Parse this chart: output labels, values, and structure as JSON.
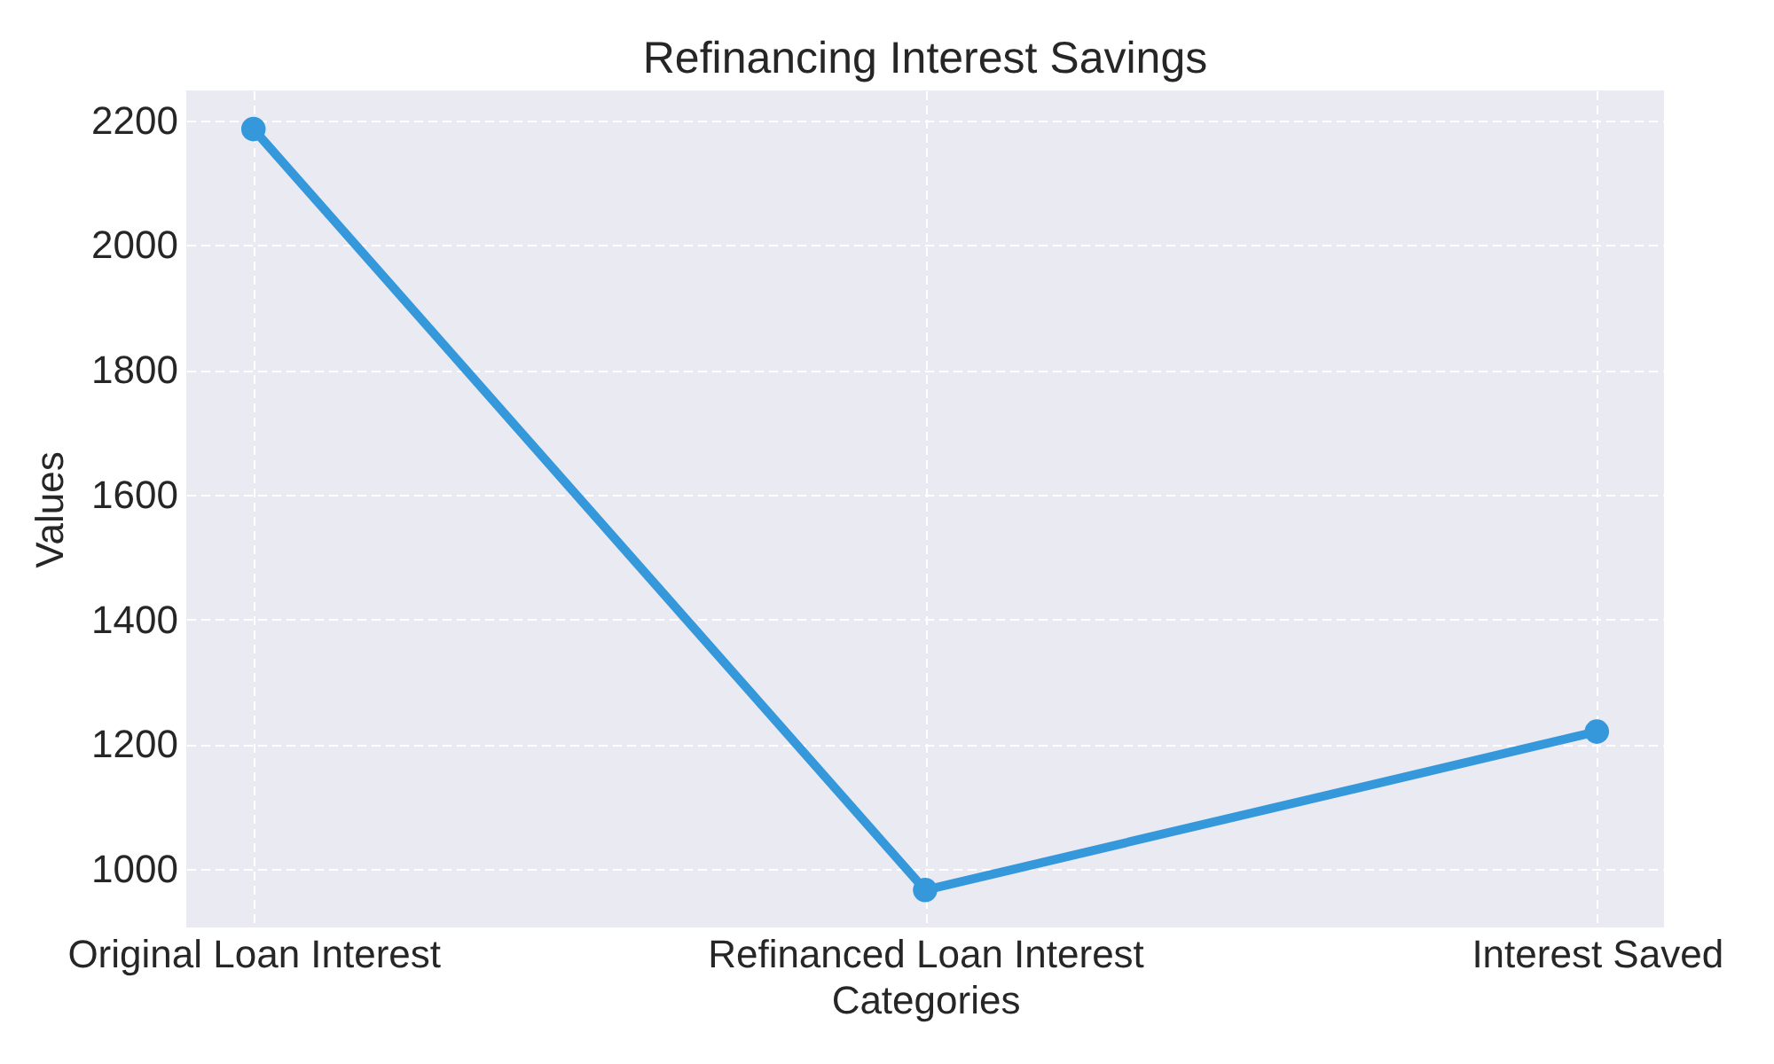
{
  "chart_data": {
    "type": "line",
    "title": "Refinancing Interest Savings",
    "xlabel": "Categories",
    "ylabel": "Values",
    "categories": [
      "Original Loan Interest",
      "Refinanced Loan Interest",
      "Interest Saved"
    ],
    "series": [
      {
        "color": "#3498db",
        "values": [
          2186,
          966,
          1220
        ]
      }
    ],
    "ylim": [
      906,
      2248
    ],
    "yticks": [
      1000,
      1200,
      1400,
      1600,
      1800,
      2000,
      2200
    ],
    "grid": true,
    "marker": "circle",
    "line_style": "solid"
  }
}
